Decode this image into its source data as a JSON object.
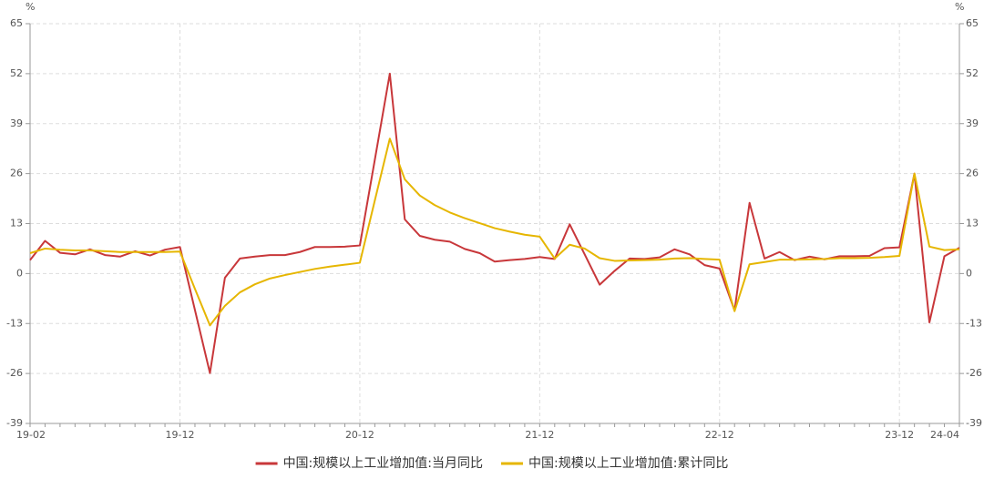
{
  "chart_data": {
    "type": "line",
    "ylabel": "%",
    "y2label": "%",
    "categories": [
      "19-02",
      null,
      null,
      null,
      null,
      null,
      null,
      null,
      null,
      null,
      "19-12",
      null,
      null,
      null,
      null,
      null,
      null,
      null,
      null,
      null,
      null,
      null,
      "20-12",
      null,
      null,
      null,
      null,
      null,
      null,
      null,
      null,
      null,
      null,
      null,
      "21-12",
      null,
      null,
      null,
      null,
      null,
      null,
      null,
      null,
      null,
      null,
      null,
      "22-12",
      null,
      null,
      null,
      null,
      null,
      null,
      null,
      null,
      null,
      null,
      null,
      "23-12",
      null,
      null,
      null,
      "24-04"
    ],
    "series": [
      {
        "name": "中国:规模以上工业增加值:当月同比",
        "color": "#c8373a",
        "values": [
          3.5,
          8.5,
          5.4,
          5.0,
          6.3,
          4.8,
          4.4,
          5.8,
          4.7,
          6.2,
          6.9,
          -9.5,
          -25.9,
          -1.1,
          3.9,
          4.4,
          4.8,
          4.8,
          5.6,
          6.9,
          6.9,
          7.0,
          7.3,
          29.6,
          52,
          14.1,
          9.8,
          8.8,
          8.3,
          6.4,
          5.3,
          3.1,
          3.5,
          3.8,
          4.3,
          3.8,
          12.8,
          5.0,
          -2.9,
          0.7,
          3.9,
          3.8,
          4.2,
          6.3,
          5.0,
          2.2,
          1.3,
          -9.6,
          18.4,
          3.9,
          5.6,
          3.5,
          4.4,
          3.7,
          4.5,
          4.5,
          4.6,
          6.6,
          6.8,
          26.0,
          -12.7,
          4.5,
          6.7
        ]
      },
      {
        "name": "中国:规模以上工业增加值:累计同比",
        "color": "#e6b600",
        "axis": "y2",
        "values": [
          5.3,
          6.5,
          6.2,
          6.0,
          6.0,
          5.8,
          5.6,
          5.6,
          5.6,
          5.6,
          5.7,
          -4,
          -13.5,
          -8.4,
          -4.9,
          -2.8,
          -1.3,
          -0.4,
          0.4,
          1.2,
          1.8,
          2.3,
          2.8,
          19,
          35.1,
          24.5,
          20.3,
          17.8,
          15.9,
          14.4,
          13.1,
          11.8,
          10.9,
          10.1,
          9.6,
          3.9,
          7.5,
          6.5,
          4.0,
          3.3,
          3.4,
          3.5,
          3.6,
          3.9,
          4.0,
          3.8,
          3.6,
          -9.8,
          2.4,
          3.0,
          3.6,
          3.6,
          3.7,
          3.8,
          4.0,
          4.0,
          4.1,
          4.3,
          4.6,
          26.0,
          7.0,
          6.1,
          6.3
        ]
      }
    ],
    "ylim": [
      -39,
      65
    ],
    "yticks": [
      -39,
      -26,
      -13,
      0,
      13,
      26,
      39,
      52,
      65
    ],
    "y2lim": [
      -39,
      65
    ],
    "y2ticks": [
      -39,
      -26,
      -13,
      0,
      13,
      26,
      39,
      52,
      65
    ],
    "grid": true,
    "legend": "bottom"
  }
}
